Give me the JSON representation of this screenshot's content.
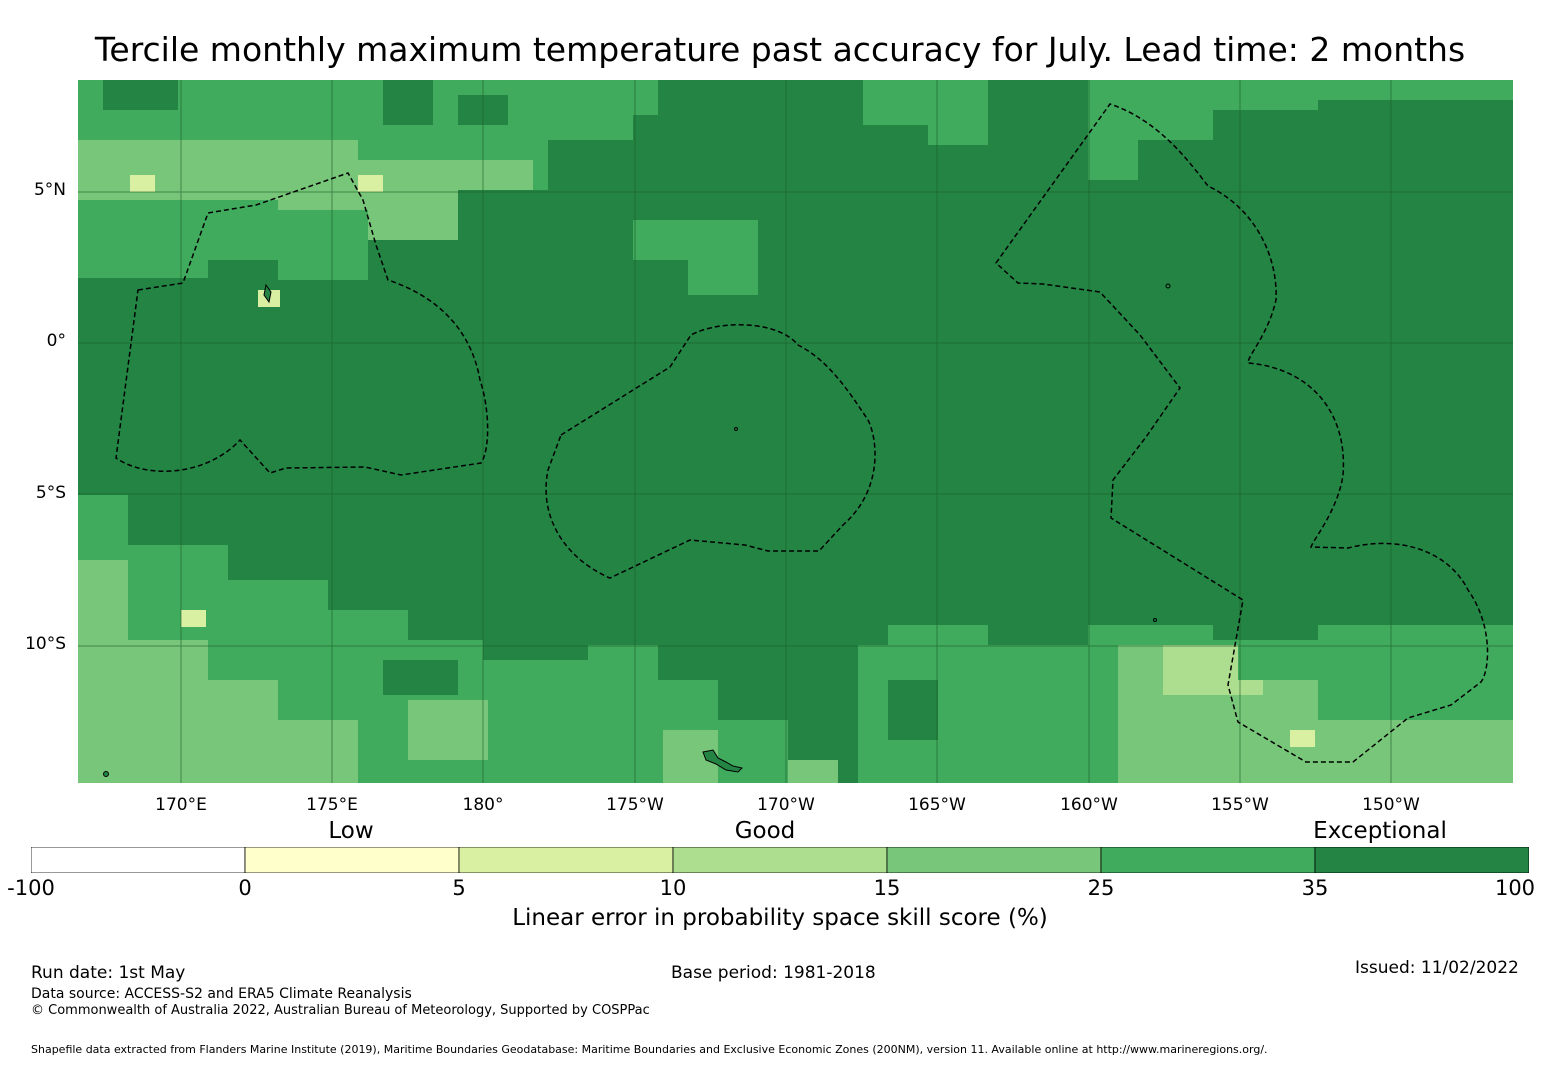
{
  "title": "Tercile monthly maximum temperature past accuracy for July. Lead time: 2 months",
  "map": {
    "lat_labels": [
      "5°N",
      "0°",
      "5°S",
      "10°S"
    ],
    "lon_labels": [
      "170°E",
      "175°E",
      "180°",
      "175°W",
      "170°W",
      "165°W",
      "160°W",
      "155°W",
      "150°W"
    ],
    "extent": {
      "lon_min": 166.6,
      "lon_max": 214.0,
      "lat_min": -14.6,
      "lat_max": 8.7
    },
    "colors": {
      "c1": "#cdeaa0",
      "c2": "#abdc88",
      "c3": "#78c679",
      "c4": "#41ab5d",
      "c5": "#238443",
      "yellow": "#f7fcb9",
      "light": "#d9f0a3",
      "boundary": "#000000",
      "grid": "#1a5c2a"
    }
  },
  "legend": {
    "categories": [
      "Low",
      "Good",
      "Exceptional"
    ],
    "ticks": [
      "-100",
      "0",
      "5",
      "10",
      "15",
      "25",
      "35",
      "100"
    ],
    "colors": [
      "#ffffff",
      "#ffffcc",
      "#d9f0a3",
      "#addd8e",
      "#78c679",
      "#41ab5d",
      "#238443"
    ],
    "label": "Linear error in probability space skill score (%)"
  },
  "footer": {
    "run_date": "Run date: 1st May",
    "base_period": "Base period: 1981-2018",
    "issued": "Issued: 11/02/2022",
    "data_source": "Data source: ACCESS-S2 and ERA5 Climate Reanalysis",
    "copyright": "© Commonwealth of Australia 2022, Australian Bureau of Meteorology, Supported by COSPPac",
    "shapefile": "Shapefile data extracted from Flanders Marine Institute (2019), Maritime Boundaries Geodatabase: Maritime Boundaries and Exclusive Economic Zones (200NM), version 11. Available online at http://www.marineregions.org/."
  }
}
